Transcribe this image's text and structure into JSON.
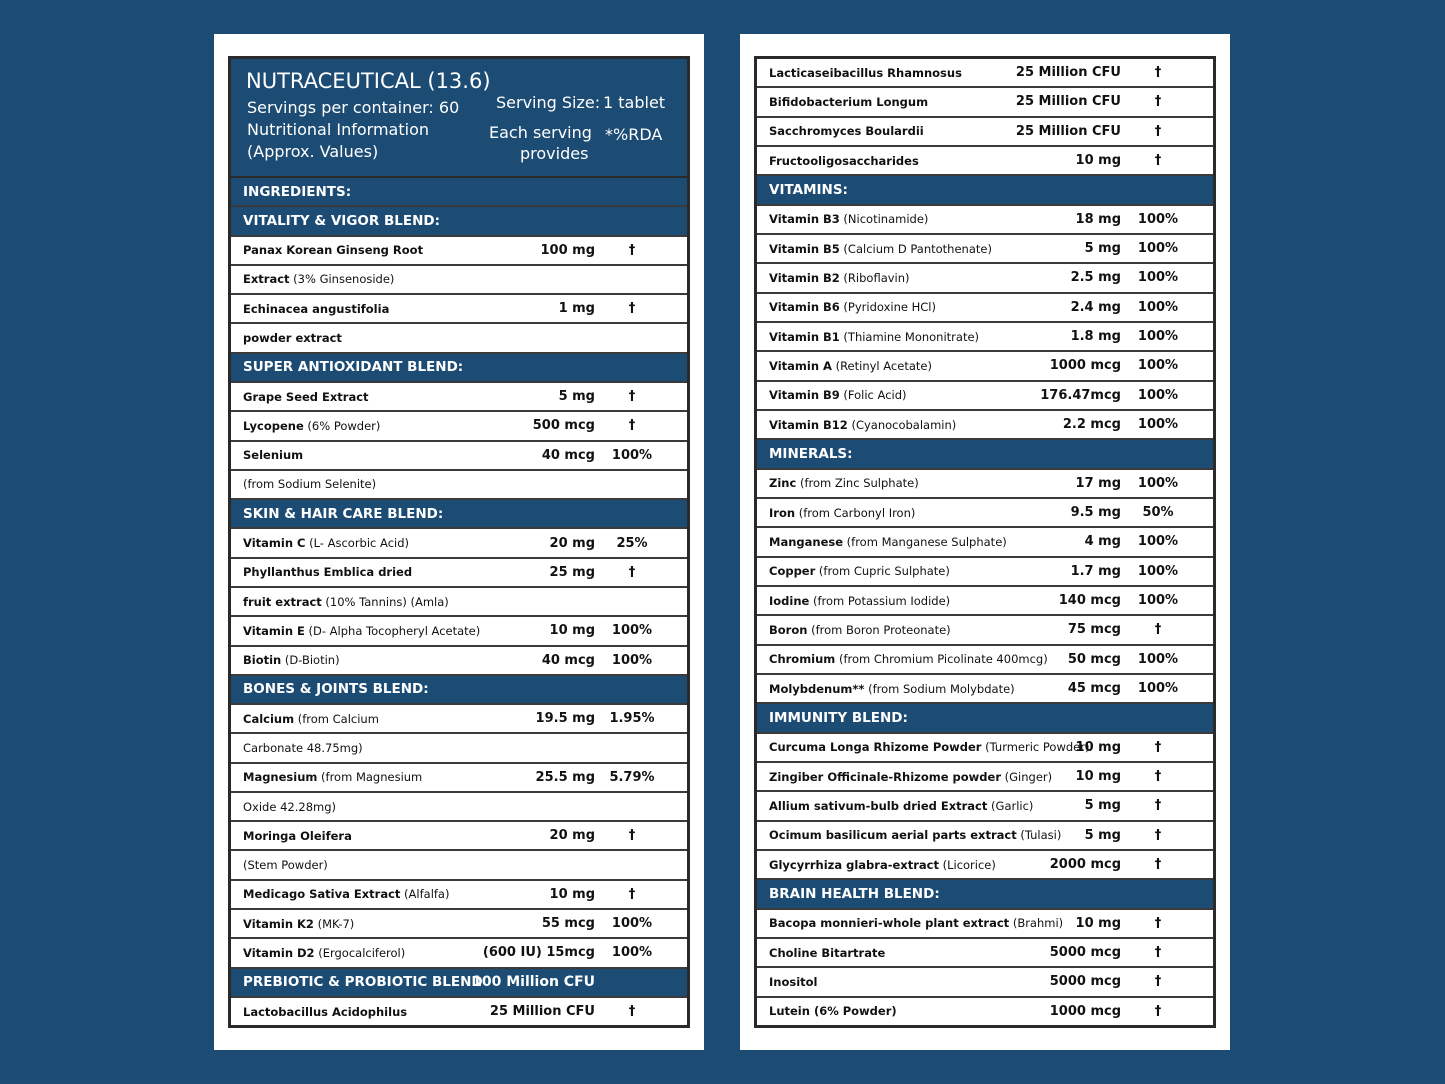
{
  "header": {
    "title": "NUTRACEUTICAL (13.6)",
    "servings": "Servings per container: 60",
    "info1": "Nutritional Information",
    "info2": "(Approx. Values)",
    "serving_size_label": "Serving Size:",
    "serving_size": "1 tablet",
    "each1": "Each serving",
    "each2": "provides",
    "rda": "*%RDA"
  },
  "left": [
    {
      "sec": "INGREDIENTS:"
    },
    {
      "sec": "VITALITY & VIGOR BLEND:"
    },
    {
      "b": "Panax Korean Ginseng Root",
      "n": "",
      "amt": "100 mg",
      "rda": "†"
    },
    {
      "b": "Extract",
      "n": " (3% Ginsenoside)",
      "amt": "",
      "rda": ""
    },
    {
      "b": "Echinacea angustifolia",
      "n": "",
      "amt": "1 mg",
      "rda": "†"
    },
    {
      "b": "powder extract",
      "n": "",
      "amt": "",
      "rda": ""
    },
    {
      "sec": "SUPER ANTIOXIDANT BLEND:"
    },
    {
      "b": "Grape Seed Extract",
      "n": "",
      "amt": "5 mg",
      "rda": "†"
    },
    {
      "b": "Lycopene",
      "n": " (6% Powder)",
      "amt": "500 mcg",
      "rda": "†"
    },
    {
      "b": "Selenium",
      "n": "",
      "amt": "40 mcg",
      "rda": "100%"
    },
    {
      "b": "",
      "n": "(from Sodium Selenite)",
      "amt": "",
      "rda": ""
    },
    {
      "sec": "SKIN & HAIR CARE BLEND:"
    },
    {
      "b": "Vitamin C",
      "n": " (L- Ascorbic Acid)",
      "amt": "20 mg",
      "rda": "25%"
    },
    {
      "b": "Phyllanthus Emblica dried",
      "n": "",
      "amt": "25 mg",
      "rda": "†"
    },
    {
      "b": "fruit extract",
      "n": " (10% Tannins) (Amla)",
      "amt": "",
      "rda": ""
    },
    {
      "b": "Vitamin E",
      "n": " (D- Alpha Tocopheryl Acetate)",
      "amt": "10 mg",
      "rda": "100%"
    },
    {
      "b": "Biotin",
      "n": " (D-Biotin)",
      "amt": "40 mcg",
      "rda": "100%"
    },
    {
      "sec": "BONES & JOINTS BLEND:"
    },
    {
      "b": "Calcium",
      "n": " (from Calcium",
      "amt": "19.5 mg",
      "rda": "1.95%"
    },
    {
      "b": "",
      "n": "Carbonate 48.75mg)",
      "amt": "",
      "rda": ""
    },
    {
      "b": "Magnesium",
      "n": " (from Magnesium",
      "amt": "25.5 mg",
      "rda": "5.79%"
    },
    {
      "b": "",
      "n": "Oxide  42.28mg)",
      "amt": "",
      "rda": ""
    },
    {
      "b": "Moringa Oleifera",
      "n": "",
      "amt": "20 mg",
      "rda": "†"
    },
    {
      "b": "",
      "n": "(Stem Powder)",
      "amt": "",
      "rda": ""
    },
    {
      "b": "Medicago Sativa Extract",
      "n": " (Alfalfa)",
      "amt": "10 mg",
      "rda": "†"
    },
    {
      "b": "Vitamin K2",
      "n": " (MK-7)",
      "amt": "55 mcg",
      "rda": "100%"
    },
    {
      "b": "Vitamin D2",
      "n": " (Ergocalciferol)",
      "amt": "(600 IU) 15mcg",
      "rda": "100%"
    },
    {
      "sec": "PREBIOTIC & PROBIOTIC BLEND",
      "amt": "100 Million CFU"
    },
    {
      "b": "Lactobacillus Acidophilus",
      "n": "",
      "amt": "25 Million CFU",
      "rda": "†"
    }
  ],
  "right": [
    {
      "b": "Lacticaseibacillus Rhamnosus",
      "n": "",
      "amt": "25 Million CFU",
      "rda": "†"
    },
    {
      "b": "Bifidobacterium Longum",
      "n": "",
      "amt": "25 Million CFU",
      "rda": "†"
    },
    {
      "b": "Sacchromyces Boulardii",
      "n": "",
      "amt": "25 Million CFU",
      "rda": "†"
    },
    {
      "b": "Fructooligosaccharides",
      "n": "",
      "amt": "10 mg",
      "rda": "†"
    },
    {
      "sec": "VITAMINS:"
    },
    {
      "b": "Vitamin B3",
      "n": " (Nicotinamide)",
      "amt": "18 mg",
      "rda": "100%"
    },
    {
      "b": "Vitamin B5",
      "n": " (Calcium D Pantothenate)",
      "amt": "5 mg",
      "rda": "100%"
    },
    {
      "b": "Vitamin B2",
      "n": " (Riboflavin)",
      "amt": "2.5 mg",
      "rda": "100%"
    },
    {
      "b": "Vitamin B6",
      "n": " (Pyridoxine HCl)",
      "amt": "2.4 mg",
      "rda": "100%"
    },
    {
      "b": "Vitamin B1",
      "n": " (Thiamine Mononitrate)",
      "amt": "1.8 mg",
      "rda": "100%"
    },
    {
      "b": "Vitamin A",
      "n": " (Retinyl Acetate)",
      "amt": "1000 mcg",
      "rda": "100%"
    },
    {
      "b": "Vitamin B9",
      "n": " (Folic Acid)",
      "amt": "176.47mcg",
      "rda": "100%"
    },
    {
      "b": "Vitamin B12",
      "n": " (Cyanocobalamin)",
      "amt": "2.2 mcg",
      "rda": "100%"
    },
    {
      "sec": "MINERALS:"
    },
    {
      "b": "Zinc",
      "n": " (from Zinc Sulphate)",
      "amt": "17 mg",
      "rda": "100%"
    },
    {
      "b": "Iron",
      "n": " (from Carbonyl Iron)",
      "amt": "9.5 mg",
      "rda": "50%"
    },
    {
      "b": "Manganese",
      "n": " (from Manganese Sulphate)",
      "amt": "4 mg",
      "rda": "100%"
    },
    {
      "b": "Copper",
      "n": " (from Cupric Sulphate)",
      "amt": "1.7 mg",
      "rda": "100%"
    },
    {
      "b": "Iodine",
      "n": " (from Potassium Iodide)",
      "amt": "140 mcg",
      "rda": "100%"
    },
    {
      "b": "Boron",
      "n": " (from Boron Proteonate)",
      "amt": "75 mcg",
      "rda": "†"
    },
    {
      "b": "Chromium",
      "n": " (from Chromium Picolinate 400mcg)",
      "amt": "50 mcg",
      "rda": "100%"
    },
    {
      "b": "Molybdenum**",
      "n": " (from Sodium Molybdate)",
      "amt": "45 mcg",
      "rda": "100%"
    },
    {
      "sec": "IMMUNITY BLEND:"
    },
    {
      "b": "Curcuma Longa Rhizome Powder",
      "n": " (Turmeric Powder)",
      "amt": "10 mg",
      "rda": "†"
    },
    {
      "b": "Zingiber Officinale-Rhizome powder",
      "n": " (Ginger)",
      "amt": "10 mg",
      "rda": "†"
    },
    {
      "b": "Allium sativum-bulb dried Extract",
      "n": " (Garlic)",
      "amt": "5 mg",
      "rda": "†"
    },
    {
      "b": "Ocimum basilicum aerial parts extract",
      "n": " (Tulasi)",
      "amt": "5 mg",
      "rda": "†"
    },
    {
      "b": "Glycyrrhiza glabra-extract",
      "n": " (Licorice)",
      "amt": "2000 mcg",
      "rda": "†"
    },
    {
      "sec": "BRAIN HEALTH BLEND:"
    },
    {
      "b": "Bacopa monnieri-whole plant extract",
      "n": " (Brahmi)",
      "amt": "10 mg",
      "rda": "†"
    },
    {
      "b": "Choline Bitartrate",
      "n": "",
      "amt": "5000 mcg",
      "rda": "†"
    },
    {
      "b": "Inositol",
      "n": "",
      "amt": "5000 mcg",
      "rda": "†"
    },
    {
      "b": "Lutein (6% Powder)",
      "n": "",
      "amt": "1000 mcg",
      "rda": "†"
    }
  ]
}
